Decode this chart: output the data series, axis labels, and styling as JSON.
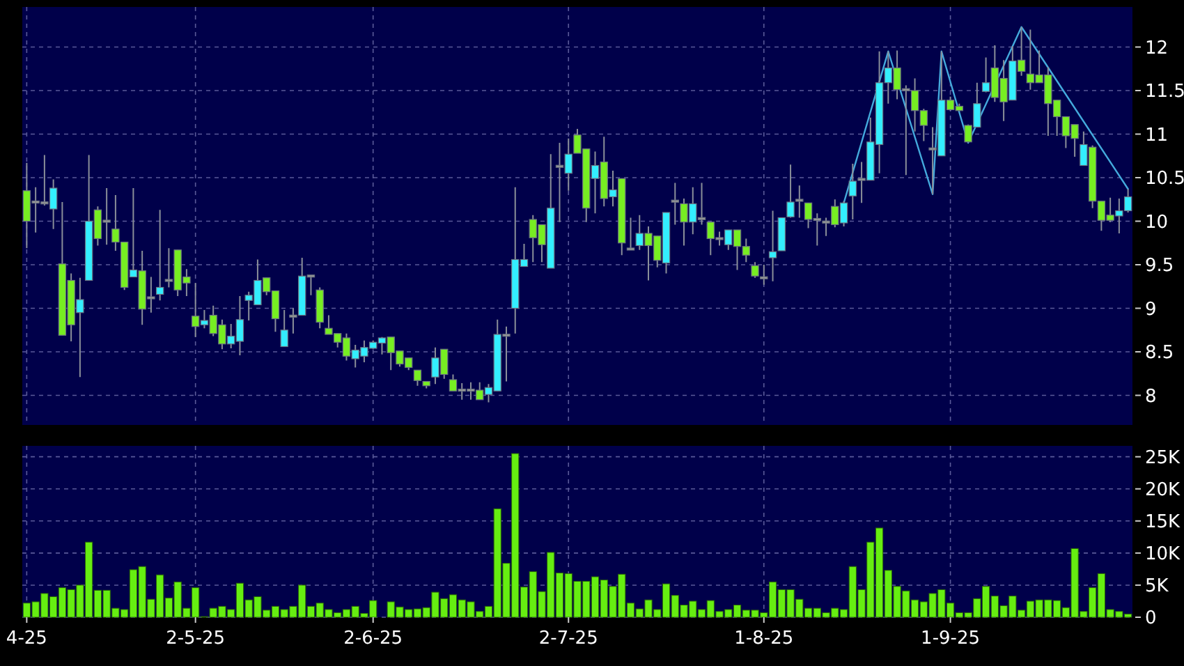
{
  "chart_data": [
    {
      "type": "candlestick",
      "categories": [
        null,
        null,
        null,
        null,
        null,
        null,
        null,
        null,
        null,
        null,
        null,
        null,
        null,
        null,
        null,
        null,
        null,
        null,
        null,
        null,
        null,
        null,
        null,
        null,
        null,
        null,
        null,
        null,
        null,
        null,
        null,
        null,
        null,
        null,
        null,
        null,
        null,
        null,
        null,
        null,
        null,
        null,
        null,
        null,
        null,
        null,
        null,
        null,
        null,
        null,
        null,
        null,
        null,
        null,
        null,
        null,
        null,
        null,
        null,
        null,
        null,
        null,
        null,
        null,
        null,
        null,
        null,
        null,
        null,
        null,
        null,
        null,
        null,
        null,
        null,
        null,
        null,
        null,
        null,
        null,
        null,
        null,
        null,
        null,
        null,
        null,
        null,
        null,
        null,
        null,
        null,
        null,
        null,
        null,
        null,
        null,
        null,
        null,
        null,
        null,
        null,
        null,
        null,
        null,
        null,
        null,
        null,
        null,
        null,
        null,
        null,
        null,
        null,
        null,
        null,
        null,
        null,
        null,
        null,
        null,
        null,
        null,
        null,
        null,
        null
      ],
      "ohlc": [
        [
          10.35,
          10.67,
          9.69,
          10.0
        ],
        [
          10.22,
          10.39,
          9.87,
          10.22
        ],
        [
          10.21,
          10.76,
          10.18,
          10.21
        ],
        [
          10.14,
          10.48,
          9.91,
          10.38
        ],
        [
          9.51,
          10.22,
          8.69,
          8.69
        ],
        [
          9.32,
          9.4,
          8.62,
          8.81
        ],
        [
          8.95,
          9.35,
          8.21,
          9.1
        ],
        [
          9.32,
          10.76,
          9.32,
          10.0
        ],
        [
          10.13,
          10.17,
          9.72,
          9.8
        ],
        [
          10.0,
          10.38,
          9.73,
          10.0
        ],
        [
          9.91,
          10.3,
          9.66,
          9.76
        ],
        [
          9.76,
          9.76,
          9.21,
          9.24
        ],
        [
          9.36,
          10.38,
          9.36,
          9.44
        ],
        [
          9.43,
          9.66,
          8.81,
          8.99
        ],
        [
          9.12,
          9.36,
          8.95,
          9.12
        ],
        [
          9.16,
          10.13,
          9.09,
          9.24
        ],
        [
          9.32,
          9.69,
          9.24,
          9.32
        ],
        [
          9.67,
          9.67,
          9.14,
          9.21
        ],
        [
          9.36,
          9.45,
          9.14,
          9.29
        ],
        [
          8.91,
          9.29,
          8.67,
          8.79
        ],
        [
          8.81,
          8.98,
          8.77,
          8.86
        ],
        [
          8.92,
          9.03,
          8.68,
          8.71
        ],
        [
          8.81,
          8.87,
          8.53,
          8.59
        ],
        [
          8.59,
          8.82,
          8.54,
          8.68
        ],
        [
          8.62,
          9.14,
          8.46,
          8.87
        ],
        [
          9.09,
          9.19,
          8.86,
          9.15
        ],
        [
          9.04,
          9.56,
          9.04,
          9.32
        ],
        [
          9.35,
          9.35,
          9.15,
          9.19
        ],
        [
          9.2,
          9.2,
          8.73,
          8.88
        ],
        [
          8.56,
          8.98,
          8.56,
          8.75
        ],
        [
          8.91,
          9.0,
          8.71,
          8.91
        ],
        [
          8.92,
          9.58,
          8.92,
          9.37
        ],
        [
          9.37,
          9.37,
          9.15,
          9.37
        ],
        [
          9.21,
          9.24,
          8.77,
          8.84
        ],
        [
          8.77,
          8.92,
          8.7,
          8.7
        ],
        [
          8.71,
          8.71,
          8.55,
          8.61
        ],
        [
          8.66,
          8.71,
          8.4,
          8.45
        ],
        [
          8.42,
          8.58,
          8.32,
          8.52
        ],
        [
          8.45,
          8.63,
          8.38,
          8.55
        ],
        [
          8.54,
          8.63,
          8.53,
          8.61
        ],
        [
          8.6,
          8.67,
          8.47,
          8.66
        ],
        [
          8.67,
          8.67,
          8.29,
          8.49
        ],
        [
          8.51,
          8.51,
          8.33,
          8.36
        ],
        [
          8.43,
          8.43,
          8.29,
          8.32
        ],
        [
          8.29,
          8.29,
          8.11,
          8.17
        ],
        [
          8.16,
          8.16,
          8.08,
          8.11
        ],
        [
          8.21,
          8.55,
          8.13,
          8.43
        ],
        [
          8.53,
          8.53,
          8.19,
          8.24
        ],
        [
          8.18,
          8.24,
          8.05,
          8.05
        ],
        [
          8.06,
          8.14,
          7.95,
          8.06
        ],
        [
          8.06,
          8.15,
          7.95,
          8.06
        ],
        [
          8.06,
          8.15,
          7.95,
          7.95
        ],
        [
          8.01,
          8.13,
          7.92,
          8.09
        ],
        [
          8.05,
          8.87,
          8.05,
          8.7
        ],
        [
          8.69,
          8.79,
          8.16,
          8.69
        ],
        [
          9.0,
          10.39,
          8.71,
          9.56
        ],
        [
          9.48,
          9.74,
          9.48,
          9.56
        ],
        [
          10.02,
          10.07,
          9.53,
          9.81
        ],
        [
          9.96,
          9.96,
          9.53,
          9.73
        ],
        [
          9.46,
          10.77,
          9.46,
          10.15
        ],
        [
          10.63,
          10.9,
          9.99,
          10.63
        ],
        [
          10.55,
          10.95,
          10.35,
          10.77
        ],
        [
          10.99,
          11.06,
          10.78,
          10.78
        ],
        [
          10.83,
          10.83,
          9.99,
          10.15
        ],
        [
          10.49,
          10.8,
          10.09,
          10.64
        ],
        [
          10.68,
          10.97,
          10.17,
          10.26
        ],
        [
          10.28,
          10.58,
          10.17,
          10.36
        ],
        [
          10.49,
          10.49,
          9.61,
          9.75
        ],
        [
          9.68,
          10.04,
          9.68,
          9.68
        ],
        [
          9.72,
          10.07,
          9.67,
          9.86
        ],
        [
          9.86,
          9.94,
          9.32,
          9.72
        ],
        [
          9.83,
          9.83,
          9.47,
          9.55
        ],
        [
          9.52,
          10.1,
          9.4,
          10.1
        ],
        [
          10.23,
          10.44,
          9.96,
          10.23
        ],
        [
          10.2,
          10.26,
          9.72,
          9.99
        ],
        [
          9.99,
          10.39,
          9.85,
          10.2
        ],
        [
          10.03,
          10.44,
          9.96,
          10.03
        ],
        [
          9.99,
          9.99,
          9.61,
          9.8
        ],
        [
          9.8,
          9.88,
          9.72,
          9.8
        ],
        [
          9.73,
          9.9,
          9.67,
          9.9
        ],
        [
          9.9,
          9.9,
          9.44,
          9.71
        ],
        [
          9.71,
          9.8,
          9.53,
          9.61
        ],
        [
          9.49,
          9.53,
          9.35,
          9.37
        ],
        [
          9.35,
          9.5,
          9.27,
          9.35
        ],
        [
          9.58,
          10.12,
          9.31,
          9.65
        ],
        [
          9.66,
          10.04,
          9.66,
          10.04
        ],
        [
          10.05,
          10.65,
          10.04,
          10.22
        ],
        [
          10.24,
          10.41,
          10.04,
          10.24
        ],
        [
          10.21,
          10.21,
          9.92,
          10.02
        ],
        [
          10.02,
          10.09,
          9.72,
          10.02
        ],
        [
          9.99,
          10.04,
          9.83,
          9.99
        ],
        [
          10.17,
          10.25,
          9.93,
          9.96
        ],
        [
          9.98,
          10.23,
          9.94,
          10.21
        ],
        [
          10.29,
          10.66,
          10.02,
          10.46
        ],
        [
          10.48,
          10.68,
          10.21,
          10.48
        ],
        [
          10.47,
          11.19,
          10.47,
          10.91
        ],
        [
          10.88,
          11.95,
          10.55,
          11.59
        ],
        [
          11.59,
          11.95,
          11.35,
          11.76
        ],
        [
          11.76,
          11.96,
          11.4,
          11.51
        ],
        [
          11.51,
          11.56,
          10.53,
          11.51
        ],
        [
          11.5,
          11.64,
          11.03,
          11.27
        ],
        [
          11.27,
          11.29,
          10.92,
          11.1
        ],
        [
          10.83,
          11.08,
          10.31,
          10.83
        ],
        [
          10.75,
          11.95,
          10.75,
          11.39
        ],
        [
          11.39,
          11.43,
          11.27,
          11.28
        ],
        [
          11.32,
          11.35,
          11.26,
          11.27
        ],
        [
          11.1,
          11.11,
          10.9,
          10.91
        ],
        [
          11.08,
          11.59,
          11.08,
          11.35
        ],
        [
          11.49,
          11.88,
          11.48,
          11.59
        ],
        [
          11.76,
          12.02,
          11.37,
          11.42
        ],
        [
          11.64,
          11.85,
          11.15,
          11.37
        ],
        [
          11.39,
          12.01,
          11.39,
          11.84
        ],
        [
          11.85,
          12.23,
          11.67,
          11.72
        ],
        [
          11.69,
          12.2,
          11.51,
          11.59
        ],
        [
          11.68,
          11.96,
          11.59,
          11.59
        ],
        [
          11.68,
          11.77,
          10.98,
          11.35
        ],
        [
          11.39,
          11.39,
          10.98,
          11.2
        ],
        [
          11.2,
          11.2,
          10.84,
          10.98
        ],
        [
          11.11,
          11.11,
          10.74,
          10.95
        ],
        [
          10.64,
          11.03,
          10.64,
          10.88
        ],
        [
          10.85,
          10.87,
          10.15,
          10.23
        ],
        [
          10.23,
          10.23,
          9.89,
          10.01
        ],
        [
          10.07,
          10.27,
          9.99,
          10.01
        ],
        [
          10.06,
          10.26,
          9.86,
          10.12
        ],
        [
          10.12,
          10.37,
          10.1,
          10.28
        ]
      ],
      "colors": [
        "#77ee22",
        "#999999",
        "#999999",
        "#33eeff",
        "#77ee22",
        "#77ee22",
        "#33eeff",
        "#33eeff",
        "#77ee22",
        "#999999",
        "#77ee22",
        "#77ee22",
        "#33eeff",
        "#77ee22",
        "#999999",
        "#33eeff",
        "#999999",
        "#77ee22",
        "#77ee22",
        "#77ee22",
        "#33eeff",
        "#77ee22",
        "#77ee22",
        "#33eeff",
        "#33eeff",
        "#33eeff",
        "#33eeff",
        "#77ee22",
        "#77ee22",
        "#33eeff",
        "#999999",
        "#33eeff",
        "#999999",
        "#77ee22",
        "#77ee22",
        "#77ee22",
        "#77ee22",
        "#33eeff",
        "#33eeff",
        "#33eeff",
        "#33eeff",
        "#77ee22",
        "#77ee22",
        "#77ee22",
        "#77ee22",
        "#77ee22",
        "#33eeff",
        "#77ee22",
        "#77ee22",
        "#999999",
        "#999999",
        "#77ee22",
        "#33eeff",
        "#33eeff",
        "#999999",
        "#33eeff",
        "#33eeff",
        "#77ee22",
        "#77ee22",
        "#33eeff",
        "#999999",
        "#33eeff",
        "#77ee22",
        "#77ee22",
        "#33eeff",
        "#77ee22",
        "#33eeff",
        "#77ee22",
        "#999999",
        "#33eeff",
        "#77ee22",
        "#77ee22",
        "#33eeff",
        "#999999",
        "#77ee22",
        "#33eeff",
        "#999999",
        "#77ee22",
        "#999999",
        "#33eeff",
        "#77ee22",
        "#77ee22",
        "#77ee22",
        "#999999",
        "#33eeff",
        "#33eeff",
        "#33eeff",
        "#999999",
        "#77ee22",
        "#999999",
        "#999999",
        "#77ee22",
        "#33eeff",
        "#33eeff",
        "#999999",
        "#33eeff",
        "#33eeff",
        "#33eeff",
        "#77ee22",
        "#999999",
        "#77ee22",
        "#77ee22",
        "#999999",
        "#33eeff",
        "#77ee22",
        "#77ee22",
        "#77ee22",
        "#33eeff",
        "#33eeff",
        "#77ee22",
        "#77ee22",
        "#33eeff",
        "#77ee22",
        "#77ee22",
        "#77ee22",
        "#77ee22",
        "#77ee22",
        "#77ee22",
        "#77ee22",
        "#33eeff",
        "#77ee22",
        "#77ee22",
        "#77ee22",
        "#33eeff",
        "#33eeff"
      ],
      "series": [
        {
          "type": "line",
          "color": "#44aadd",
          "values": [
            null,
            null,
            null,
            null,
            null,
            null,
            null,
            null,
            null,
            null,
            null,
            null,
            null,
            null,
            null,
            null,
            null,
            null,
            null,
            null,
            null,
            null,
            null,
            null,
            null,
            null,
            null,
            null,
            null,
            null,
            null,
            null,
            null,
            null,
            null,
            null,
            null,
            null,
            null,
            null,
            null,
            null,
            null,
            null,
            null,
            null,
            null,
            null,
            null,
            null,
            null,
            null,
            null,
            null,
            null,
            null,
            null,
            null,
            null,
            null,
            null,
            null,
            null,
            null,
            null,
            null,
            null,
            null,
            null,
            null,
            null,
            null,
            null,
            null,
            null,
            null,
            null,
            null,
            null,
            null,
            null,
            null,
            null,
            null,
            null,
            null,
            null,
            null,
            null,
            null,
            null,
            null,
            10.21,
            null,
            null,
            null,
            null,
            11.95,
            null,
            null,
            null,
            null,
            10.31,
            11.95,
            null,
            null,
            10.9,
            null,
            null,
            null,
            null,
            null,
            12.23,
            null,
            null,
            null,
            null,
            null,
            null,
            null,
            null,
            null,
            null,
            null,
            10.37
          ]
        }
      ],
      "ylim": [
        7.66,
        12.46
      ],
      "yticks": [
        8,
        8.5,
        9,
        9.5,
        10,
        10.5,
        11,
        11.5,
        12
      ],
      "grid": true,
      "tick_labels": "y"
    },
    {
      "type": "bar",
      "categories": [
        "4-25",
        null,
        null,
        null,
        null,
        null,
        null,
        null,
        null,
        null,
        null,
        null,
        null,
        null,
        null,
        null,
        null,
        null,
        null,
        "2-5-25",
        null,
        null,
        null,
        null,
        null,
        null,
        null,
        null,
        null,
        null,
        null,
        null,
        null,
        null,
        null,
        null,
        null,
        null,
        null,
        "2-6-25",
        null,
        null,
        null,
        null,
        null,
        null,
        null,
        null,
        null,
        null,
        null,
        null,
        null,
        null,
        null,
        null,
        null,
        null,
        null,
        null,
        null,
        "2-7-25",
        null,
        null,
        null,
        null,
        null,
        null,
        null,
        null,
        null,
        null,
        null,
        null,
        null,
        null,
        null,
        null,
        null,
        null,
        null,
        null,
        null,
        "1-8-25",
        null,
        null,
        null,
        null,
        null,
        null,
        null,
        null,
        null,
        null,
        null,
        null,
        null,
        null,
        null,
        null,
        null,
        null,
        null,
        null,
        "1-9-25",
        null,
        null,
        null,
        null,
        null,
        null,
        null,
        null,
        null,
        null,
        null,
        null,
        null,
        null,
        null,
        null,
        null,
        null,
        null,
        null
      ],
      "values": [
        2200,
        2400,
        3700,
        3200,
        4600,
        4300,
        5000,
        11700,
        4200,
        4200,
        1400,
        1200,
        7400,
        7900,
        2800,
        6600,
        3000,
        5500,
        1400,
        4600,
        100,
        1400,
        1700,
        1200,
        5300,
        2700,
        3200,
        1100,
        1700,
        1200,
        1700,
        5000,
        1700,
        2200,
        1200,
        700,
        1200,
        1700,
        600,
        2600,
        0,
        2400,
        1600,
        1200,
        1300,
        1500,
        3900,
        2900,
        3500,
        2700,
        2400,
        900,
        1700,
        16900,
        8400,
        25500,
        4700,
        7100,
        4000,
        10100,
        6900,
        6800,
        5600,
        5600,
        6300,
        5800,
        4800,
        6700,
        2200,
        1300,
        2700,
        1200,
        5200,
        3400,
        1900,
        2500,
        1200,
        2600,
        900,
        1200,
        1900,
        1100,
        1100,
        700,
        5500,
        4300,
        4300,
        2800,
        1400,
        1400,
        700,
        1400,
        1200,
        7900,
        4300,
        11700,
        13900,
        7300,
        4800,
        4100,
        2700,
        2400,
        3700,
        4300,
        2200,
        700,
        700,
        2900,
        4800,
        3300,
        1800,
        3300,
        1100,
        2500,
        2700,
        2700,
        2600,
        1500,
        10700,
        900,
        4600,
        6800,
        1200,
        900,
        500
      ],
      "color": "#66ee11",
      "ylim": [
        0,
        26700
      ],
      "yticks": [
        {
          "value": 0,
          "label": "0"
        },
        {
          "value": 5000,
          "label": "5K"
        },
        {
          "value": 10000,
          "label": "10K"
        },
        {
          "value": 15000,
          "label": "15K"
        },
        {
          "value": 20000,
          "label": "20K"
        },
        {
          "value": 25000,
          "label": "25K"
        }
      ],
      "grid": true
    }
  ]
}
